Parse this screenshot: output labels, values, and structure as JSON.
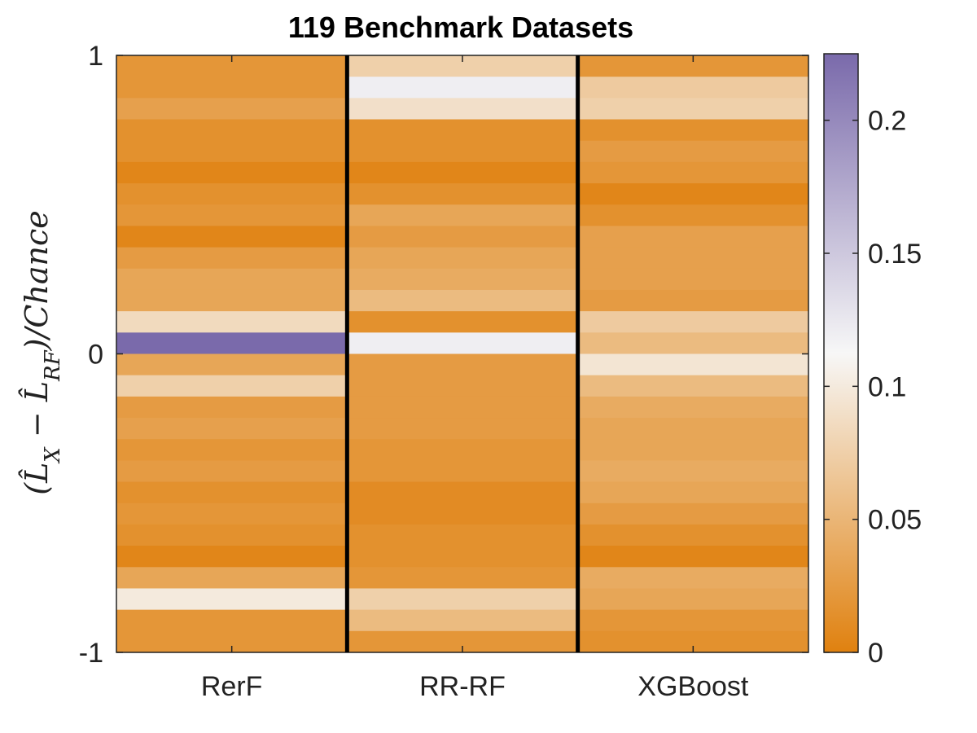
{
  "chart_data": {
    "type": "heatmap",
    "title": "119 Benchmark Datasets",
    "ylabel": "(ĤL_X − ĤL_RF)/Chance",
    "ylim": [
      -1,
      1
    ],
    "yticks": [
      "1",
      "0",
      "-1"
    ],
    "columns": [
      "RerF",
      "RR-RF",
      "XGBoost"
    ],
    "colorbar": {
      "range": [
        0,
        0.225
      ],
      "ticks": [
        "0",
        "0.05",
        "0.1",
        "0.15",
        "0.2"
      ],
      "tick_values": [
        0,
        0.05,
        0.1,
        0.15,
        0.2
      ],
      "colors": {
        "low": "#e0810f",
        "mid": "#f7f7f7",
        "high": "#7a6aab"
      }
    },
    "cells": {
      "RerF": [
        0.02,
        0.02,
        0.03,
        0.015,
        0.015,
        0.005,
        0.015,
        0.02,
        0.005,
        0.025,
        0.035,
        0.035,
        0.085,
        0.225,
        0.035,
        0.075,
        0.025,
        0.03,
        0.02,
        0.025,
        0.015,
        0.02,
        0.015,
        0.005,
        0.035,
        0.1,
        0.02,
        0.02
      ],
      "RR-RF": [
        0.075,
        0.12,
        0.09,
        0.015,
        0.015,
        0.005,
        0.015,
        0.035,
        0.025,
        0.035,
        0.04,
        0.055,
        0.015,
        0.12,
        0.025,
        0.025,
        0.025,
        0.025,
        0.02,
        0.02,
        0.01,
        0.01,
        0.015,
        0.015,
        0.02,
        0.075,
        0.055,
        0.02
      ],
      "XGBoost": [
        0.02,
        0.07,
        0.075,
        0.015,
        0.025,
        0.02,
        0.005,
        0.015,
        0.03,
        0.03,
        0.03,
        0.025,
        0.07,
        0.055,
        0.095,
        0.055,
        0.04,
        0.035,
        0.035,
        0.04,
        0.035,
        0.025,
        0.015,
        0.005,
        0.04,
        0.035,
        0.02,
        0.015
      ]
    }
  }
}
